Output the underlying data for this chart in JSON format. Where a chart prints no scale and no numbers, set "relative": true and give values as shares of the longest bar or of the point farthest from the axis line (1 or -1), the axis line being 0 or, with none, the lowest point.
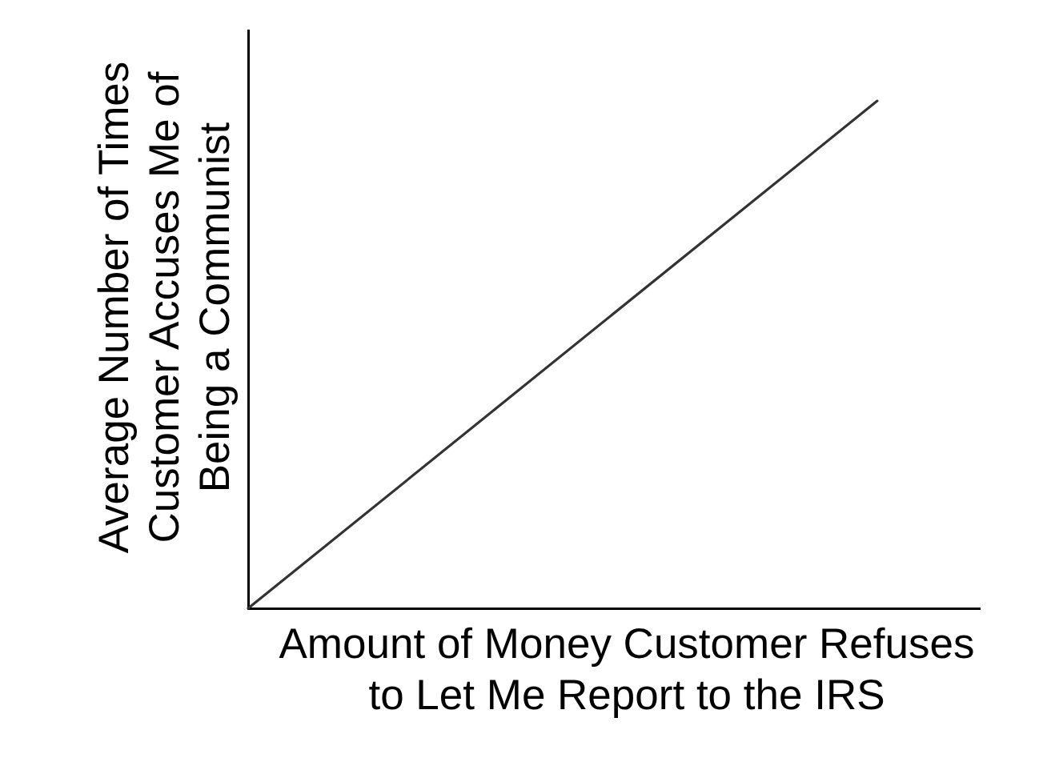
{
  "chart_data": {
    "type": "line",
    "xlabel": "Amount of Money Customer Refuses\nto Let Me Report to the IRS",
    "ylabel": "Average Number of Times\nCustomer Accuses Me of\nBeing a Communist",
    "categories": [
      null,
      null
    ],
    "relative": true,
    "series": [
      {
        "color": "#333333",
        "values": [
          0,
          1
        ]
      }
    ]
  }
}
